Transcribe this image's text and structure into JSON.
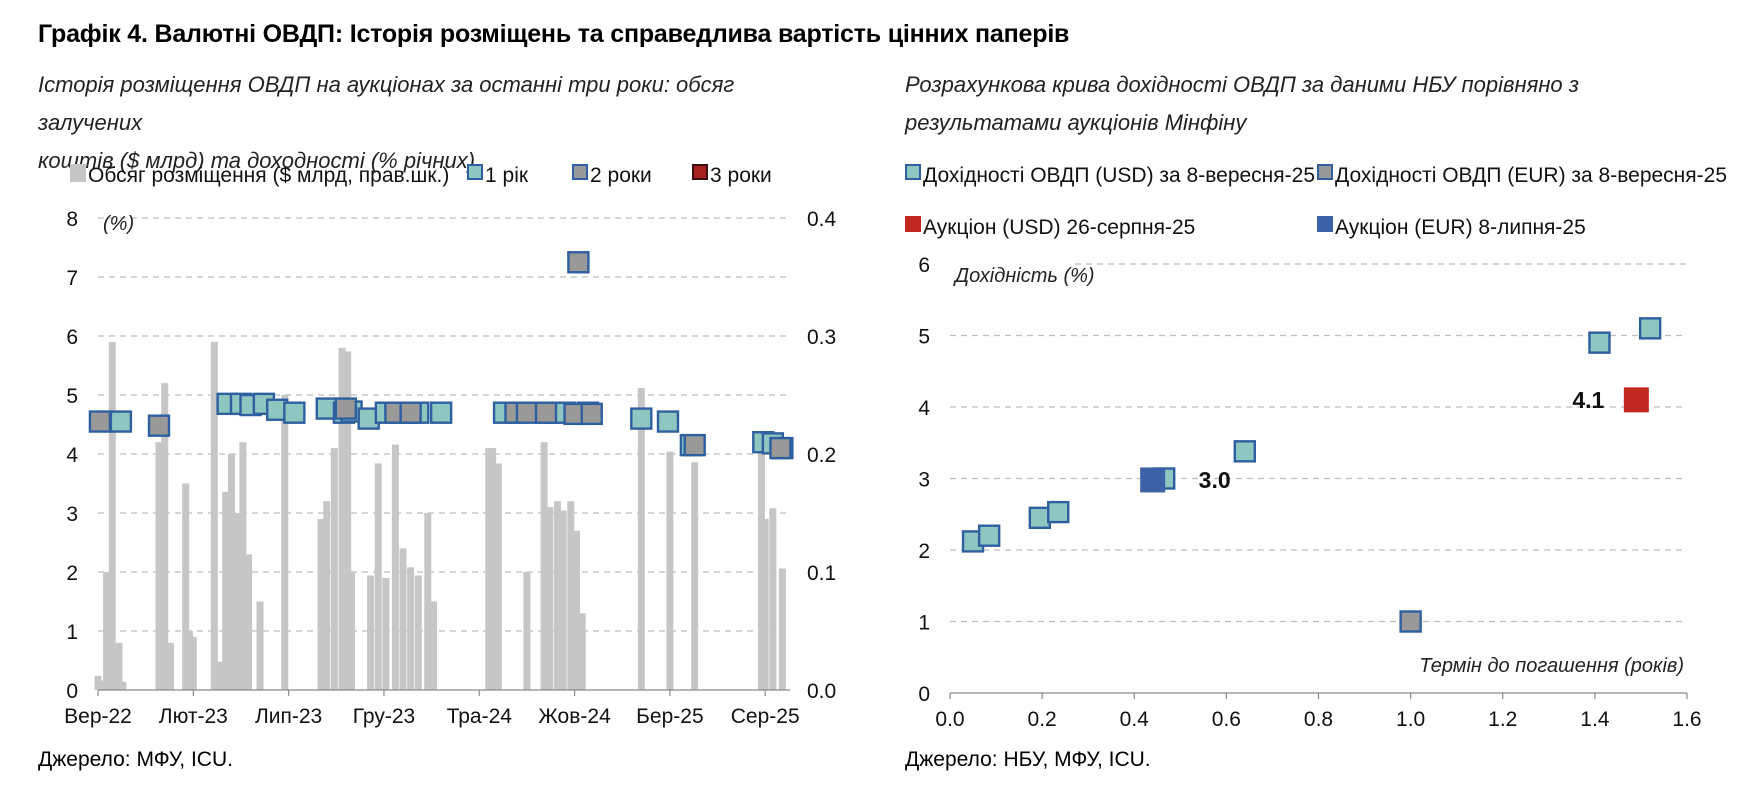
{
  "title": "Графік 4. Валютні ОВДП: Історія розміщень та справедлива вартість цінних паперів",
  "left": {
    "subtitle_line1": "Історія розміщення ОВДП на аукціонах за останні три роки: обсяг залучених",
    "subtitle_line2": "коштів ($ млрд) та доходності (% річних)",
    "source": "Джерело: МФУ, ICU.",
    "chart_data": {
      "type": "bar+scatter",
      "yunit_label": "(%)",
      "ylim": [
        0,
        8
      ],
      "yticks": [
        "0",
        "1",
        "2",
        "3",
        "4",
        "5",
        "6",
        "7",
        "8"
      ],
      "y2lim": [
        0,
        0.4
      ],
      "y2ticks": [
        "0.0",
        "0.1",
        "0.2",
        "0.3",
        "0.4"
      ],
      "xlim": [
        0,
        36.3
      ],
      "xticks": [
        {
          "label": "Вер-22",
          "x": 0
        },
        {
          "label": "Лют-23",
          "x": 5
        },
        {
          "label": "Лип-23",
          "x": 10
        },
        {
          "label": "Гру-23",
          "x": 15
        },
        {
          "label": "Тра-24",
          "x": 20
        },
        {
          "label": "Жов-24",
          "x": 25
        },
        {
          "label": "Бер-25",
          "x": 30
        },
        {
          "label": "Сер-25",
          "x": 35
        }
      ],
      "legend": [
        {
          "label": "Обсяг розміщення ($ млрд, прав.шк.)",
          "color": "#c6c6c6",
          "shape": "bar"
        },
        {
          "label": "1 рік",
          "color": "#8ec6c2",
          "shape": "square"
        },
        {
          "label": "2 роки",
          "color": "#999999",
          "shape": "square"
        },
        {
          "label": "3 роки",
          "color": "#a52421",
          "shape": "square"
        }
      ],
      "bars_volume_bn": [
        [
          0.0,
          0.012
        ],
        [
          0.2,
          0.008
        ],
        [
          0.45,
          0.1
        ],
        [
          0.75,
          0.295
        ],
        [
          0.9,
          0.02
        ],
        [
          1.1,
          0.04
        ],
        [
          1.3,
          0.007
        ],
        [
          3.2,
          0.21
        ],
        [
          3.5,
          0.26
        ],
        [
          3.8,
          0.04
        ],
        [
          4.6,
          0.175
        ],
        [
          4.8,
          0.05
        ],
        [
          5.0,
          0.045
        ],
        [
          6.1,
          0.295
        ],
        [
          6.4,
          0.024
        ],
        [
          6.7,
          0.168
        ],
        [
          7.0,
          0.2
        ],
        [
          7.3,
          0.15
        ],
        [
          7.6,
          0.21
        ],
        [
          7.9,
          0.115
        ],
        [
          8.5,
          0.075
        ],
        [
          9.8,
          0.25
        ],
        [
          11.7,
          0.145
        ],
        [
          12.0,
          0.16
        ],
        [
          12.4,
          0.205
        ],
        [
          12.8,
          0.29
        ],
        [
          13.1,
          0.287
        ],
        [
          13.3,
          0.1
        ],
        [
          14.3,
          0.097
        ],
        [
          14.7,
          0.192
        ],
        [
          15.1,
          0.095
        ],
        [
          15.6,
          0.208
        ],
        [
          16.0,
          0.12
        ],
        [
          16.4,
          0.104
        ],
        [
          16.8,
          0.097
        ],
        [
          17.3,
          0.15
        ],
        [
          17.6,
          0.075
        ],
        [
          20.5,
          0.205
        ],
        [
          20.7,
          0.205
        ],
        [
          21.0,
          0.192
        ],
        [
          22.5,
          0.1
        ],
        [
          23.4,
          0.21
        ],
        [
          23.7,
          0.155
        ],
        [
          24.1,
          0.16
        ],
        [
          24.4,
          0.152
        ],
        [
          24.8,
          0.16
        ],
        [
          25.1,
          0.135
        ],
        [
          25.4,
          0.065
        ],
        [
          28.5,
          0.256
        ],
        [
          30.0,
          0.202
        ],
        [
          31.3,
          0.193
        ],
        [
          34.8,
          0.21
        ],
        [
          35.0,
          0.145
        ],
        [
          35.4,
          0.154
        ],
        [
          35.9,
          0.103
        ]
      ],
      "series": [
        {
          "name": "1 рік",
          "color": "#8ec6c2",
          "points": [
            [
              1.2,
              4.55
            ],
            [
              6.8,
              4.85
            ],
            [
              7.5,
              4.85
            ],
            [
              8.0,
              4.83
            ],
            [
              8.7,
              4.85
            ],
            [
              9.4,
              4.75
            ],
            [
              10.3,
              4.7
            ],
            [
              12.0,
              4.77
            ],
            [
              12.9,
              4.7
            ],
            [
              13.3,
              4.72
            ],
            [
              14.2,
              4.6
            ],
            [
              15.1,
              4.7
            ],
            [
              16.8,
              4.7
            ],
            [
              18.0,
              4.7
            ],
            [
              21.3,
              4.7
            ],
            [
              23.7,
              4.7
            ],
            [
              24.5,
              4.7
            ],
            [
              25.7,
              4.7
            ],
            [
              28.5,
              4.6
            ],
            [
              29.9,
              4.55
            ],
            [
              31.1,
              4.15
            ],
            [
              34.9,
              4.2
            ],
            [
              35.4,
              4.18
            ],
            [
              35.9,
              4.1
            ]
          ]
        },
        {
          "name": "2 роки",
          "color": "#999999",
          "points": [
            [
              0.1,
              4.55
            ],
            [
              3.2,
              4.48
            ],
            [
              13.0,
              4.77
            ],
            [
              15.6,
              4.7
            ],
            [
              16.4,
              4.7
            ],
            [
              21.9,
              4.7
            ],
            [
              22.5,
              4.7
            ],
            [
              23.5,
              4.7
            ],
            [
              25.0,
              4.68
            ],
            [
              25.9,
              4.68
            ],
            [
              25.2,
              7.25
            ],
            [
              31.3,
              4.15
            ],
            [
              35.8,
              4.1
            ]
          ]
        },
        {
          "name": "3 роки",
          "color": "#a52421",
          "points": []
        }
      ]
    }
  },
  "right": {
    "subtitle_line1": "Розрахункова крива дохідності ОВДП за даними НБУ порівняно з",
    "subtitle_line2": "результатами аукціонів Мінфіну",
    "source": "Джерело: НБУ, МФУ, ICU.",
    "chart_data": {
      "type": "scatter",
      "ylabel": "Дохідність (%)",
      "xlabel": "Термін до погашення (років)",
      "xlim": [
        0,
        1.6
      ],
      "xticks": [
        "0.0",
        "0.2",
        "0.4",
        "0.6",
        "0.8",
        "1.0",
        "1.2",
        "1.4",
        "1.6"
      ],
      "ylim": [
        0,
        6
      ],
      "yticks": [
        "0",
        "1",
        "2",
        "3",
        "4",
        "5",
        "6"
      ],
      "legend": [
        {
          "label": "Дохідності ОВДП (USD) за 8-вересня-25",
          "color": "#8ec6c2",
          "outline": "#2e5f9e"
        },
        {
          "label": "Дохідності ОВДП (EUR) за 8-вересня-25",
          "color": "#999999",
          "outline": "#2e5f9e"
        },
        {
          "label": "Аукціон (USD) 26-серпня-25",
          "color": "#c0281f",
          "outline": "#c0281f"
        },
        {
          "label": "Аукціон (EUR) 8-липня-25",
          "color": "#3d62a8",
          "outline": "#3d62a8"
        }
      ],
      "series": [
        {
          "name": "Дохідності ОВДП (USD) за 8-вересня-25",
          "color": "#8ec6c2",
          "points": [
            [
              0.05,
              2.12
            ],
            [
              0.085,
              2.2
            ],
            [
              0.195,
              2.45
            ],
            [
              0.235,
              2.53
            ],
            [
              0.465,
              3.0
            ],
            [
              0.64,
              3.38
            ],
            [
              1.41,
              4.9
            ],
            [
              1.52,
              5.1
            ]
          ]
        },
        {
          "name": "Дохідності ОВДП (EUR) за 8-вересня-25",
          "color": "#999999",
          "points": [
            [
              1.0,
              1.0
            ]
          ]
        },
        {
          "name": "Аукціон (USD) 26-серпня-25",
          "color": "#c0281f",
          "points": [
            [
              1.49,
              4.1
            ]
          ]
        },
        {
          "name": "Аукціон (EUR) 8-липня-25",
          "color": "#3d62a8",
          "points": [
            [
              0.44,
              2.98
            ]
          ]
        }
      ],
      "annotations": [
        {
          "text": "4.1",
          "x": 1.49,
          "y": 4.1,
          "side": "left"
        },
        {
          "text": "3.0",
          "x": 0.44,
          "y": 2.98,
          "side": "right"
        }
      ]
    }
  }
}
